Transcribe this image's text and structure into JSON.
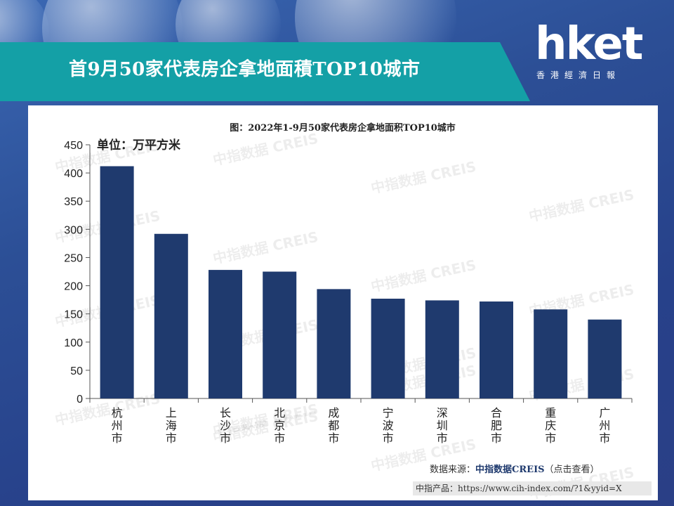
{
  "header": {
    "title": "首9月50家代表房企拿地面積TOP10城市",
    "logo_word": "hket",
    "logo_sub": "香港經濟日報"
  },
  "watermark_text": "中指数据 CREIS",
  "colors": {
    "background": "#2c4f96",
    "title_band": "#14a0a6",
    "bar": "#1f3a6e"
  },
  "chart_data": {
    "type": "bar",
    "title": "图：2022年1-9月50家代表房企拿地面积TOP10城市",
    "unit_label": "单位：万平方米",
    "categories": [
      "杭州市",
      "上海市",
      "长沙市",
      "北京市",
      "成都市",
      "宁波市",
      "深圳市",
      "合肥市",
      "重庆市",
      "广州市"
    ],
    "values": [
      412,
      292,
      228,
      225,
      194,
      177,
      174,
      172,
      158,
      140
    ],
    "ylim": [
      0,
      450
    ],
    "yticks": [
      0,
      50,
      100,
      150,
      200,
      250,
      300,
      350,
      400,
      450
    ],
    "grid": false,
    "xlabel": "",
    "ylabel": ""
  },
  "footer": {
    "source_prefix": "数据来源：",
    "source_name": "中指数据CREIS",
    "source_suffix": "（点击查看）",
    "product_line": "中指产品：https://www.cih-index.com/?1&yyid=X"
  }
}
